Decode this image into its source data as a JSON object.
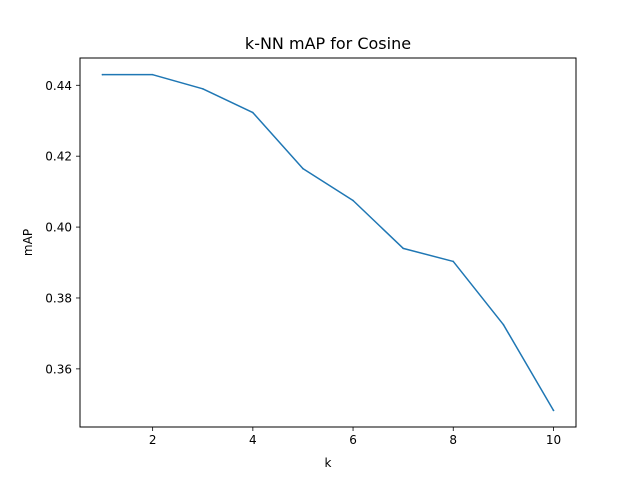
{
  "chart_data": {
    "type": "line",
    "title": "k-NN mAP for Cosine",
    "xlabel": "k",
    "ylabel": "mAP",
    "x": [
      1,
      2,
      3,
      4,
      5,
      6,
      7,
      8,
      9,
      10
    ],
    "series": [
      {
        "values": [
          0.443,
          0.443,
          0.439,
          0.4323,
          0.4165,
          0.4075,
          0.394,
          0.3903,
          0.3725,
          0.3483
        ],
        "color": "#1f77b4"
      }
    ],
    "xlim": [
      0.55,
      10.45
    ],
    "ylim": [
      0.3436,
      0.4477
    ],
    "xticks": [
      2,
      4,
      6,
      8,
      10
    ],
    "xtick_labels": [
      "2",
      "4",
      "6",
      "8",
      "10"
    ],
    "yticks": [
      0.36,
      0.38,
      0.4,
      0.42,
      0.44
    ],
    "ytick_labels": [
      "0.36",
      "0.38",
      "0.40",
      "0.42",
      "0.44"
    ],
    "grid": false,
    "legend": "none"
  }
}
